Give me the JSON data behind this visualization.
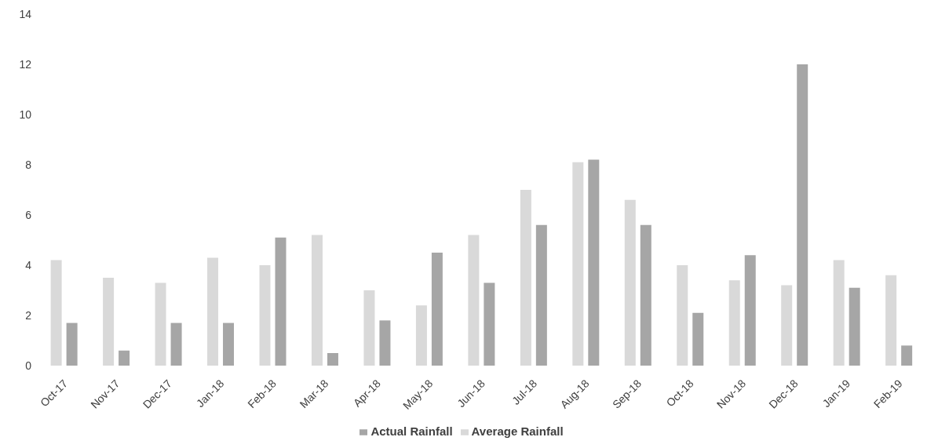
{
  "chart_data": {
    "type": "bar",
    "categories": [
      "Oct-17",
      "Nov-17",
      "Dec-17",
      "Jan-18",
      "Feb-18",
      "Mar-18",
      "Apr-18",
      "May-18",
      "Jun-18",
      "Jul-18",
      "Aug-18",
      "Sep-18",
      "Oct-18",
      "Nov-18",
      "Dec-18",
      "Jan-19",
      "Feb-19"
    ],
    "series": [
      {
        "name": "Average Rainfall",
        "color": "#d9d9d9",
        "values": [
          4.2,
          3.5,
          3.3,
          4.3,
          4.0,
          5.2,
          3.0,
          2.4,
          5.2,
          7.0,
          8.1,
          6.6,
          4.0,
          3.4,
          3.2,
          4.2,
          3.6
        ]
      },
      {
        "name": "Actual Rainfall",
        "color": "#a6a6a6",
        "values": [
          1.7,
          0.6,
          1.7,
          1.7,
          5.1,
          0.5,
          1.8,
          4.5,
          3.3,
          5.6,
          8.2,
          5.6,
          2.1,
          4.4,
          12.0,
          3.1,
          0.8
        ]
      }
    ],
    "ylim": [
      0,
      14
    ],
    "yticks": [
      0,
      2,
      4,
      6,
      8,
      10,
      12,
      14
    ],
    "grid": false,
    "legend": "bottom"
  }
}
